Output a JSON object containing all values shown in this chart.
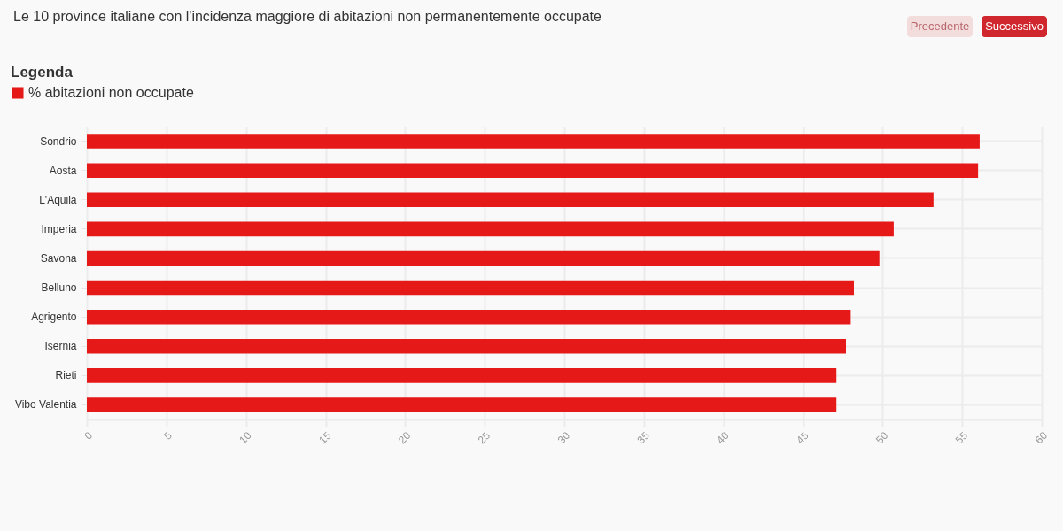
{
  "chart_data": {
    "type": "bar",
    "orientation": "horizontal",
    "title": "Le 10 province italiane con l'incidenza maggiore di abitazioni non permanentemente occupate",
    "legend_title": "Legenda",
    "categories": [
      "Sondrio",
      "Aosta",
      "L'Aquila",
      "Imperia",
      "Savona",
      "Belluno",
      "Agrigento",
      "Isernia",
      "Rieti",
      "Vibo Valentia"
    ],
    "series": [
      {
        "name": "% abitazioni non occupate",
        "color": "#e61919",
        "values": [
          56.1,
          56.0,
          53.2,
          50.7,
          49.8,
          48.2,
          48.0,
          47.7,
          47.1,
          47.1
        ]
      }
    ],
    "xlim": [
      0,
      60
    ],
    "xticks": [
      0,
      5,
      10,
      15,
      20,
      25,
      30,
      35,
      40,
      45,
      50,
      55,
      60
    ],
    "grid": true,
    "legend": "top left",
    "annotations": [
      "Precedente",
      "Successivo"
    ]
  }
}
